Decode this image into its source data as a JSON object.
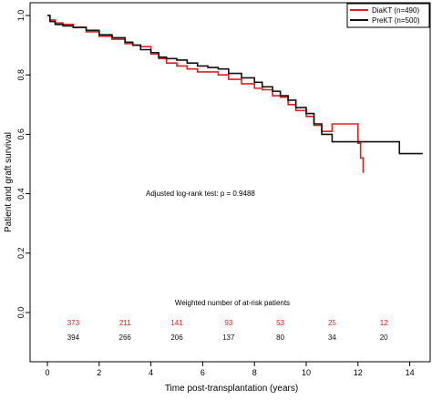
{
  "chart_data": {
    "type": "line",
    "title": "",
    "xlabel": "Time post-transplantation (years)",
    "ylabel": "Patient and graft survival",
    "xlim": [
      0,
      14.5
    ],
    "ylim": [
      0,
      1.0
    ],
    "x_ticks": [
      0,
      2,
      4,
      6,
      8,
      10,
      12,
      14
    ],
    "y_ticks": [
      0.0,
      0.2,
      0.4,
      0.6,
      0.8,
      1.0
    ],
    "x_tick_labels": [
      "0",
      "2",
      "4",
      "6",
      "8",
      "10",
      "12",
      "14"
    ],
    "y_tick_labels": [
      "0.0",
      "0.2",
      "0.4",
      "0.6",
      "0.8",
      "1.0"
    ],
    "grid": false,
    "legend_position": "top-right",
    "annotation": "Adjusted log-rank test: p = 0.9488",
    "risk_table_title": "Weighted number of at-risk patients",
    "risk_table_x": [
      1,
      3,
      5,
      7,
      9,
      11,
      13
    ],
    "series": [
      {
        "name": "DiaKT (n=490)",
        "color": "#e0201b",
        "at_risk": [
          "373",
          "211",
          "141",
          "93",
          "53",
          "25",
          "12"
        ],
        "x": [
          0,
          0.1,
          0.3,
          0.6,
          1.0,
          1.5,
          2.0,
          2.5,
          3.0,
          3.3,
          3.6,
          4.0,
          4.3,
          4.6,
          5.0,
          5.4,
          5.8,
          6.2,
          6.6,
          7.0,
          7.5,
          8.0,
          8.3,
          8.7,
          9.0,
          9.3,
          9.6,
          10.0,
          10.3,
          10.6,
          11.0,
          11.5,
          11.8,
          12.0,
          12.1,
          12.2
        ],
        "y": [
          1.0,
          0.985,
          0.975,
          0.97,
          0.96,
          0.945,
          0.93,
          0.92,
          0.905,
          0.9,
          0.895,
          0.87,
          0.855,
          0.84,
          0.83,
          0.82,
          0.81,
          0.81,
          0.8,
          0.785,
          0.77,
          0.755,
          0.75,
          0.73,
          0.725,
          0.7,
          0.68,
          0.66,
          0.63,
          0.61,
          0.635,
          0.635,
          0.635,
          0.57,
          0.52,
          0.47
        ]
      },
      {
        "name": "PreKT (n=500)",
        "color": "#111111",
        "at_risk": [
          "394",
          "266",
          "206",
          "137",
          "80",
          "34",
          "20"
        ],
        "x": [
          0,
          0.1,
          0.3,
          0.6,
          1.0,
          1.5,
          2.0,
          2.5,
          3.0,
          3.3,
          3.6,
          4.0,
          4.3,
          4.6,
          5.0,
          5.4,
          5.8,
          6.2,
          6.6,
          7.0,
          7.5,
          8.0,
          8.3,
          8.7,
          9.0,
          9.3,
          9.6,
          10.0,
          10.3,
          10.6,
          11.0,
          11.5,
          12.0,
          12.5,
          13.2,
          13.6,
          14.5
        ],
        "y": [
          1.0,
          0.98,
          0.97,
          0.965,
          0.96,
          0.95,
          0.935,
          0.925,
          0.91,
          0.9,
          0.885,
          0.875,
          0.86,
          0.855,
          0.85,
          0.84,
          0.83,
          0.825,
          0.82,
          0.805,
          0.79,
          0.775,
          0.76,
          0.745,
          0.73,
          0.715,
          0.69,
          0.67,
          0.635,
          0.6,
          0.575,
          0.575,
          0.575,
          0.575,
          0.575,
          0.535,
          0.535
        ]
      }
    ]
  }
}
